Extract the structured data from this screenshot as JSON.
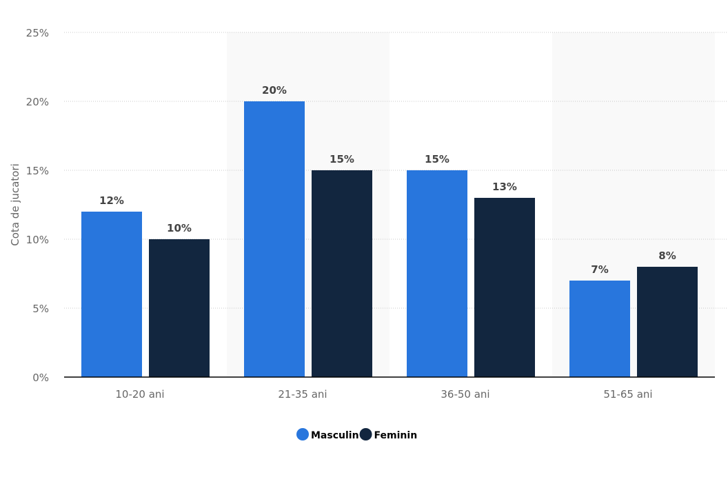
{
  "chart_data": {
    "type": "bar",
    "categories": [
      "10-20 ani",
      "21-35 ani",
      "36-50 ani",
      "51-65 ani"
    ],
    "series": [
      {
        "name": "Masculin",
        "values": [
          12,
          20,
          15,
          7
        ],
        "color": "#2876dd"
      },
      {
        "name": "Feminin",
        "values": [
          10,
          15,
          13,
          8
        ],
        "color": "#12263f"
      }
    ],
    "value_suffix": "%",
    "ylabel": "Cota de jucatori",
    "xlabel": "",
    "ylim": [
      0,
      25
    ],
    "yticks": [
      0,
      5,
      10,
      15,
      20,
      25
    ],
    "ytick_labels": [
      "0%",
      "5%",
      "10%",
      "15%",
      "20%",
      "25%"
    ],
    "grid": true,
    "legend_position": "bottom-center"
  }
}
